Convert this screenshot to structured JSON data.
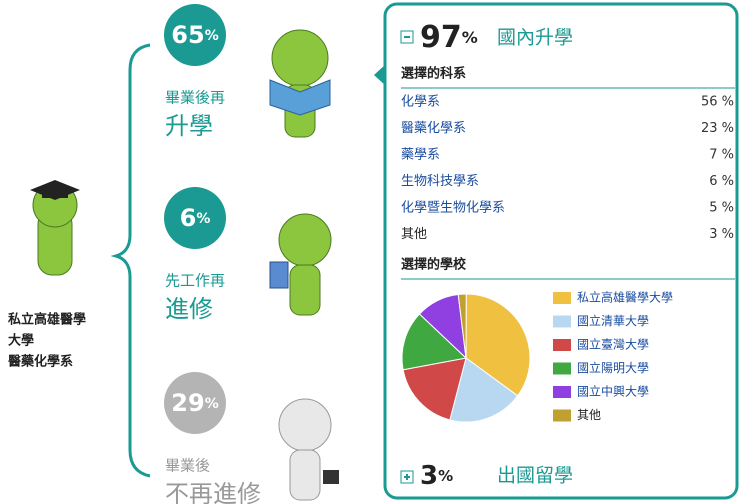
{
  "school": {
    "lines": [
      "私立高雄醫學",
      "大學",
      "醫藥化學系"
    ]
  },
  "paths": [
    {
      "number": 65,
      "unit": "%",
      "lines": [
        "畢業後再",
        "升學"
      ]
    },
    {
      "number": 6,
      "unit": "%",
      "lines": [
        "先工作再",
        "進修"
      ]
    },
    {
      "number": 29,
      "unit": "%",
      "lines": [
        "畢業後",
        "不再進修"
      ]
    }
  ],
  "domestic": {
    "number": 97,
    "unit": "%",
    "title": "國內升學",
    "departments_title": "選擇的科系",
    "departments": [
      {
        "name": "化學系",
        "share": "56 %"
      },
      {
        "name": "醫藥化學系",
        "share": "23 %"
      },
      {
        "name": "藥學系",
        "share": "7 %"
      },
      {
        "name": "生物科技學系",
        "share": "6 %"
      },
      {
        "name": "化學暨生物化學系",
        "share": "5 %"
      },
      {
        "name": "其他",
        "share": "3 %"
      }
    ],
    "schools_title": "選擇的學校"
  },
  "chart_data": {
    "type": "pie",
    "categories": [
      "私立高雄醫學大學",
      "國立清華大學",
      "國立臺灣大學",
      "國立陽明大學",
      "國立中興大學",
      "其他"
    ],
    "values": [
      35,
      19,
      18,
      15,
      11,
      2
    ],
    "colors": [
      "#f0c040",
      "#b8d8f2",
      "#d04848",
      "#40a840",
      "#9040e0",
      "#c0a030"
    ],
    "legend": "right"
  },
  "abroad": {
    "number": 3,
    "unit": "%",
    "title": "出國留學"
  }
}
